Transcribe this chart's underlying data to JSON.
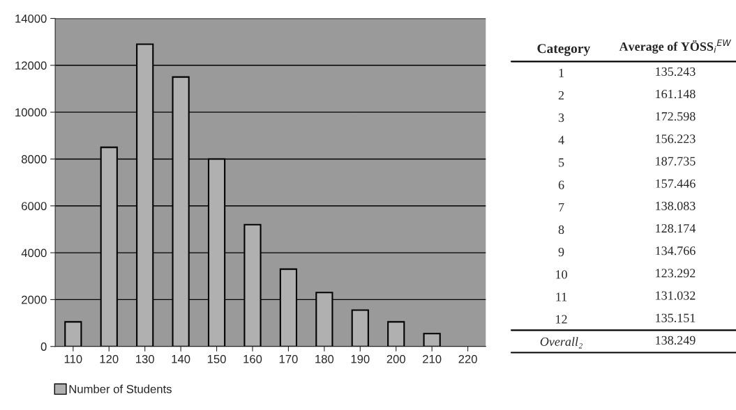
{
  "chart_data": [
    {
      "type": "bar",
      "categories": [
        "110",
        "120",
        "130",
        "140",
        "150",
        "160",
        "170",
        "180",
        "190",
        "200",
        "210",
        "220"
      ],
      "series": [
        {
          "name": "Number of Students",
          "color": "#b0b0b0",
          "values": [
            1050,
            8500,
            12900,
            11500,
            8000,
            5200,
            3300,
            2300,
            1550,
            1050,
            550,
            null
          ]
        }
      ],
      "ylim": [
        0,
        14000
      ],
      "yticks": [
        0,
        2000,
        4000,
        6000,
        8000,
        10000,
        12000,
        14000
      ],
      "grid": "y",
      "legend": "bottom left"
    },
    {
      "type": "heatmap",
      "ylabel": "Category",
      "categories": [
        "Average of YÖSS$_{i}$$^{EW}$"
      ],
      "y_categories": [
        "1",
        "2",
        "3",
        "4",
        "5",
        "6",
        "7",
        "8",
        "9",
        "10",
        "11",
        "12",
        "Overall₂"
      ],
      "cells": [
        [
          135.243
        ],
        [
          161.148
        ],
        [
          172.598
        ],
        [
          156.223
        ],
        [
          187.735
        ],
        [
          157.446
        ],
        [
          138.083
        ],
        [
          128.174
        ],
        [
          134.766
        ],
        [
          123.292
        ],
        [
          131.032
        ],
        [
          135.151
        ],
        [
          138.249
        ]
      ],
      "data_labels": true
    }
  ]
}
